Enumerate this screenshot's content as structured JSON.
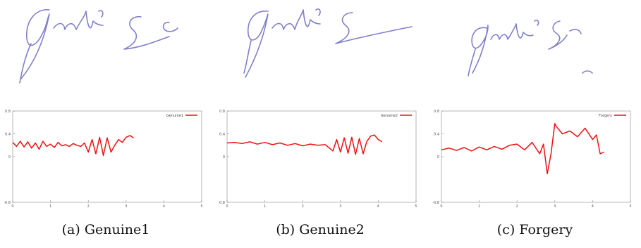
{
  "chart_data": [
    {
      "type": "line",
      "caption": "(a) Genuine1",
      "legend": "Genuine1",
      "xlim": [
        0,
        5
      ],
      "ylim": [
        -0.8,
        0.8
      ],
      "xticks": [
        "0",
        "1",
        "2",
        "3",
        "4",
        "5"
      ],
      "yticks": [
        "0.8",
        "0.4",
        "0",
        "-0.8"
      ],
      "series": [
        {
          "name": "Genuine1",
          "x": [
            0,
            0.1,
            0.2,
            0.3,
            0.4,
            0.5,
            0.6,
            0.7,
            0.8,
            0.9,
            1.0,
            1.1,
            1.2,
            1.3,
            1.4,
            1.5,
            1.6,
            1.7,
            1.8,
            1.9,
            2.0,
            2.1,
            2.2,
            2.3,
            2.4,
            2.5,
            2.6,
            2.7,
            2.8,
            2.9,
            3.0,
            3.1,
            3.2
          ],
          "y": [
            0.25,
            0.18,
            0.27,
            0.17,
            0.26,
            0.15,
            0.24,
            0.13,
            0.27,
            0.18,
            0.22,
            0.16,
            0.25,
            0.19,
            0.21,
            0.18,
            0.23,
            0.2,
            0.18,
            0.24,
            0.08,
            0.3,
            0.05,
            0.34,
            0.02,
            0.33,
            0.08,
            0.2,
            0.3,
            0.25,
            0.34,
            0.37,
            0.33
          ]
        }
      ]
    },
    {
      "type": "line",
      "caption": "(b) Genuine2",
      "legend": "Genuine2",
      "xlim": [
        0,
        5
      ],
      "ylim": [
        -0.8,
        0.8
      ],
      "xticks": [
        "0",
        "1",
        "2",
        "3",
        "4",
        "5"
      ],
      "yticks": [
        "0.8",
        "0.4",
        "0",
        "-0.8"
      ],
      "series": [
        {
          "name": "Genuine2",
          "x": [
            0,
            0.2,
            0.4,
            0.6,
            0.8,
            1.0,
            1.2,
            1.4,
            1.6,
            1.8,
            2.0,
            2.2,
            2.4,
            2.6,
            2.8,
            2.9,
            3.0,
            3.1,
            3.2,
            3.3,
            3.4,
            3.5,
            3.6,
            3.7,
            3.8,
            3.9,
            4.0,
            4.1
          ],
          "y": [
            0.24,
            0.25,
            0.23,
            0.26,
            0.22,
            0.25,
            0.21,
            0.24,
            0.2,
            0.23,
            0.19,
            0.22,
            0.2,
            0.21,
            0.1,
            0.3,
            0.08,
            0.33,
            0.06,
            0.34,
            0.04,
            0.32,
            0.05,
            0.27,
            0.36,
            0.38,
            0.3,
            0.26
          ]
        }
      ]
    },
    {
      "type": "line",
      "caption": "(c) Forgery",
      "legend": "Forgery",
      "xlim": [
        0,
        5
      ],
      "ylim": [
        -0.8,
        0.8
      ],
      "xticks": [
        "0",
        "1",
        "2",
        "3",
        "4",
        "5"
      ],
      "yticks": [
        "0.8",
        "0.4",
        "0",
        "-0.8"
      ],
      "series": [
        {
          "name": "Forgery",
          "x": [
            0,
            0.2,
            0.4,
            0.6,
            0.8,
            1.0,
            1.2,
            1.4,
            1.6,
            1.8,
            2.0,
            2.2,
            2.4,
            2.6,
            2.7,
            2.8,
            2.9,
            3.0,
            3.05,
            3.2,
            3.4,
            3.6,
            3.8,
            4.0,
            4.1,
            4.2,
            4.3
          ],
          "y": [
            0.12,
            0.15,
            0.11,
            0.16,
            0.1,
            0.17,
            0.12,
            0.18,
            0.13,
            0.2,
            0.22,
            0.12,
            0.25,
            0.05,
            0.22,
            -0.3,
            0.05,
            0.58,
            0.52,
            0.4,
            0.45,
            0.35,
            0.5,
            0.3,
            0.38,
            0.05,
            0.08
          ]
        }
      ]
    }
  ]
}
